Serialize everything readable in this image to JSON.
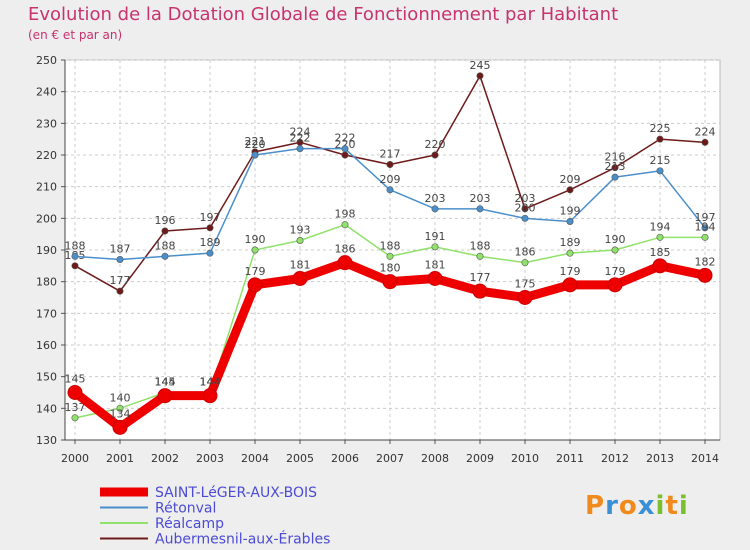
{
  "header": {
    "title": "Evolution de la Dotation Globale de Fonctionnement par Habitant",
    "subtitle": "(en € et par an)"
  },
  "logo": {
    "letters": [
      "P",
      "r",
      "o",
      "x",
      "i",
      "t",
      "i"
    ],
    "colors": [
      "#f08a1c",
      "#3b8fd4",
      "#f08a1c",
      "#3b8fd4",
      "#7cbf2e",
      "#f08a1c",
      "#7cbf2e"
    ]
  },
  "chart_data": {
    "type": "line",
    "title": "Evolution de la Dotation Globale de Fonctionnement par Habitant",
    "subtitle": "(en € et par an)",
    "xlabel": "",
    "ylabel": "",
    "ylim": [
      130,
      250
    ],
    "yticks": [
      130,
      140,
      150,
      160,
      170,
      180,
      190,
      200,
      210,
      220,
      230,
      240,
      250
    ],
    "x": [
      "2000",
      "2001",
      "2002",
      "2003",
      "2004",
      "2005",
      "2006",
      "2007",
      "2008",
      "2009",
      "2010",
      "2011",
      "2012",
      "2013",
      "2014"
    ],
    "grid": true,
    "legend_position": "bottom-left",
    "series": [
      {
        "name": "Aubermesnil-aux-Érables",
        "color": "#6e1a1a",
        "values": [
          185,
          177,
          196,
          197,
          221,
          224,
          220,
          217,
          220,
          245,
          203,
          209,
          216,
          225,
          224
        ]
      },
      {
        "name": "Rétonval",
        "color": "#4a8fcc",
        "values": [
          188,
          187,
          188,
          189,
          220,
          222,
          222,
          209,
          203,
          203,
          200,
          199,
          213,
          215,
          197
        ]
      },
      {
        "name": "Réalcamp",
        "color": "#90e26a",
        "values": [
          137,
          140,
          145,
          145,
          190,
          193,
          198,
          188,
          191,
          188,
          186,
          189,
          190,
          194,
          194
        ]
      },
      {
        "name": "SAINT-LéGER-AUX-BOIS",
        "color": "#ee0000",
        "values": [
          145,
          134,
          144,
          144,
          179,
          181,
          186,
          180,
          181,
          177,
          175,
          179,
          179,
          185,
          182
        ]
      }
    ]
  }
}
